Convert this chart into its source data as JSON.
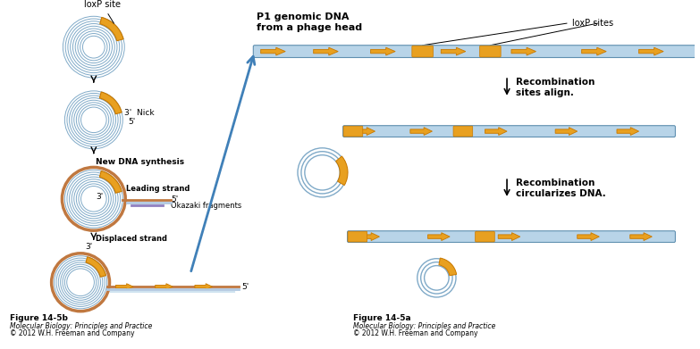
{
  "title_right": "P1 genomic DNA\nfrom a phage head",
  "loxp_label_left": "loxP site",
  "loxp_label_right": "loxP sites",
  "label_nick": "Nick",
  "label_3prime_1": "3'",
  "label_5prime_1": "5'",
  "label_new_dna": "New DNA synthesis",
  "label_leading": "Leading strand",
  "label_3prime_2": "3'",
  "label_5prime_2": "5'",
  "label_okazaki": "Okazaki fragments",
  "label_displaced": "Displaced strand",
  "label_3prime_3": "3'",
  "label_5prime_3": "5'",
  "label_recomb1": "Recombination\nsites align.",
  "label_recomb2": "Recombination\ncircularizes DNA.",
  "fig_label_left": "Figure 14-5b",
  "fig_italic_left": "Molecular Biology: Principles and Practice",
  "fig_copy_left": "© 2012 W.H. Freeman and Company",
  "fig_label_right": "Figure 14-5a",
  "fig_italic_right": "Molecular Biology: Principles and Practice",
  "fig_copy_right": "© 2012 W.H. Freeman and Company",
  "dna_blue": "#b8d4e8",
  "dna_dark_blue": "#6090b0",
  "arrow_orange": "#e8a020",
  "arrow_orange_dark": "#c87800",
  "circle_stroke": "#80aac8",
  "strand_brown": "#c07840",
  "strand_blue_light": "#b0c8e0",
  "strand_purple": "#9080c0",
  "arrow_color": "#4080b8",
  "background": "#ffffff"
}
